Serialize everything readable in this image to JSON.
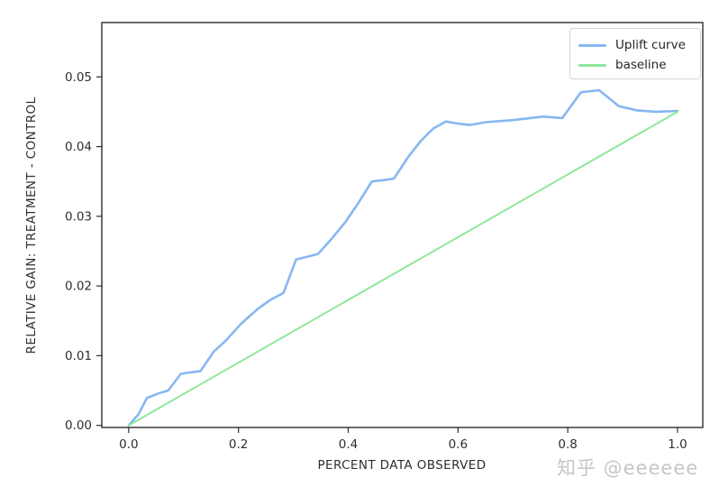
{
  "watermark": {
    "text": "知乎 @eeeeee",
    "color": "#c6c6c6"
  },
  "chart_data": {
    "type": "line",
    "title": "",
    "xlabel": "PERCENT DATA OBSERVED",
    "ylabel": "RELATIVE GAIN: TREATMENT - CONTROL",
    "xlim": [
      -0.049,
      1.046
    ],
    "ylim": [
      -0.0003,
      0.0578
    ],
    "grid": false,
    "legend_position": "upper right",
    "frame_color": "#2e2e2e",
    "tick_label_color": "#2e2e2e",
    "xticks": {
      "values": [
        0.0,
        0.2,
        0.4,
        0.6,
        0.8,
        1.0
      ],
      "labels": [
        "0.0",
        "0.2",
        "0.4",
        "0.6",
        "0.8",
        "1.0"
      ]
    },
    "yticks": {
      "values": [
        0.0,
        0.01,
        0.02,
        0.03,
        0.04,
        0.05
      ],
      "labels": [
        "0.00",
        "0.01",
        "0.02",
        "0.03",
        "0.04",
        "0.05"
      ]
    },
    "series": [
      {
        "name": "Uplift curve",
        "color": "#87b7f0",
        "width": 2.6,
        "points": [
          [
            0.0,
            0.0
          ],
          [
            0.018,
            0.0016
          ],
          [
            0.033,
            0.0039
          ],
          [
            0.055,
            0.0046
          ],
          [
            0.072,
            0.005
          ],
          [
            0.095,
            0.0074
          ],
          [
            0.113,
            0.0076
          ],
          [
            0.131,
            0.0078
          ],
          [
            0.155,
            0.0106
          ],
          [
            0.175,
            0.012
          ],
          [
            0.205,
            0.0146
          ],
          [
            0.235,
            0.0167
          ],
          [
            0.258,
            0.018
          ],
          [
            0.282,
            0.019
          ],
          [
            0.305,
            0.0238
          ],
          [
            0.325,
            0.0242
          ],
          [
            0.345,
            0.0246
          ],
          [
            0.37,
            0.0268
          ],
          [
            0.395,
            0.0292
          ],
          [
            0.42,
            0.0321
          ],
          [
            0.443,
            0.035
          ],
          [
            0.465,
            0.0352
          ],
          [
            0.483,
            0.0354
          ],
          [
            0.51,
            0.0386
          ],
          [
            0.532,
            0.0408
          ],
          [
            0.555,
            0.0426
          ],
          [
            0.578,
            0.0436
          ],
          [
            0.6,
            0.0433
          ],
          [
            0.622,
            0.0431
          ],
          [
            0.65,
            0.0435
          ],
          [
            0.7,
            0.0438
          ],
          [
            0.755,
            0.0443
          ],
          [
            0.79,
            0.0441
          ],
          [
            0.824,
            0.0478
          ],
          [
            0.857,
            0.0481
          ],
          [
            0.893,
            0.0458
          ],
          [
            0.926,
            0.0452
          ],
          [
            0.96,
            0.045
          ],
          [
            1.0,
            0.0451
          ]
        ]
      },
      {
        "name": "baseline",
        "color": "#90e79b",
        "width": 2.0,
        "points": [
          [
            0.0,
            0.0
          ],
          [
            1.0,
            0.045
          ]
        ]
      }
    ]
  }
}
